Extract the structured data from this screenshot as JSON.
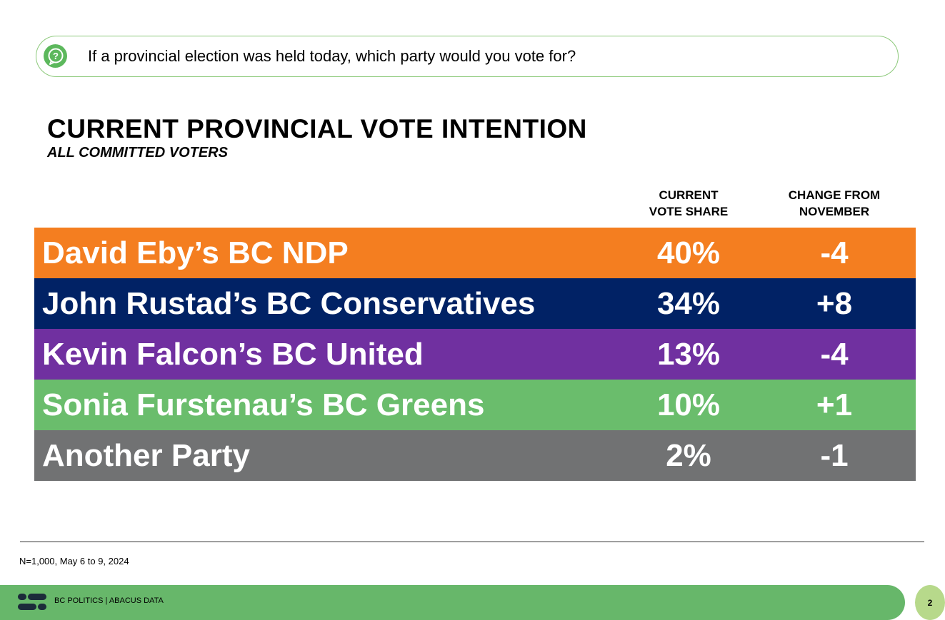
{
  "question": {
    "icon": "question-bubble-icon",
    "text": "If a provincial election was held today, which party would you vote for?"
  },
  "chart_data": {
    "type": "table",
    "title": "CURRENT PROVINCIAL VOTE INTENTION",
    "subtitle": "ALL COMMITTED VOTERS",
    "columns": {
      "share": [
        "CURRENT",
        "VOTE SHARE"
      ],
      "change": [
        "CHANGE FROM",
        "NOVEMBER"
      ]
    },
    "rows": [
      {
        "party": "David Eby’s BC NDP",
        "share": "40%",
        "change": "-4",
        "color": "#f47e20"
      },
      {
        "party": "John Rustad’s BC Conservatives",
        "share": "34%",
        "change": "+8",
        "color": "#012265"
      },
      {
        "party": "Kevin Falcon’s BC United",
        "share": "13%",
        "change": "-4",
        "color": "#7030a0"
      },
      {
        "party": "Sonia Furstenau’s BC Greens",
        "share": "10%",
        "change": "+1",
        "color": "#6abd6c"
      },
      {
        "party": "Another Party",
        "share": "2%",
        "change": "-1",
        "color": "#717273"
      }
    ]
  },
  "footnote": "N=1,000, May 6 to 9, 2024",
  "footer": {
    "logo_icon": "abacus-logo-icon",
    "text": "BC POLITICS  |  ABACUS DATA",
    "page_number": "2"
  }
}
